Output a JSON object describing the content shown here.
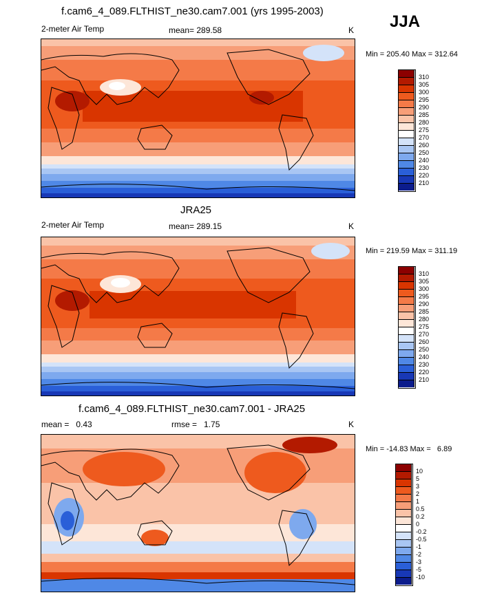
{
  "season": "JJA",
  "panels": [
    {
      "title": "f.cam6_4_089.FLTHIST_ne30.cam7.001 (yrs 1995-2003)",
      "left_label": "2-meter Air Temp",
      "center_label": "mean= 289.58",
      "right_label": "K",
      "minmax": "Min = 205.40 Max = 312.64",
      "colorbar_ticks": [
        "310",
        "305",
        "300",
        "295",
        "290",
        "285",
        "280",
        "275",
        "270",
        "260",
        "250",
        "240",
        "230",
        "220",
        "210"
      ],
      "colorbar_colors": [
        "#8c0000",
        "#b31a00",
        "#d93500",
        "#ee5a1e",
        "#f47a48",
        "#f79e78",
        "#fac3a8",
        "#fde6d8",
        "#ffffff",
        "#d4e3f9",
        "#a9c6f3",
        "#7ea9ee",
        "#4f88e6",
        "#2a5fd8",
        "#1838b6",
        "#0c1c8c"
      ]
    },
    {
      "title": "JRA25",
      "left_label": "2-meter Air Temp",
      "center_label": "mean= 289.15",
      "right_label": "K",
      "minmax": "Min = 219.59 Max = 311.19",
      "colorbar_ticks": [
        "310",
        "305",
        "300",
        "295",
        "290",
        "285",
        "280",
        "275",
        "270",
        "260",
        "250",
        "240",
        "230",
        "220",
        "210"
      ],
      "colorbar_colors": [
        "#8c0000",
        "#b31a00",
        "#d93500",
        "#ee5a1e",
        "#f47a48",
        "#f79e78",
        "#fac3a8",
        "#fde6d8",
        "#ffffff",
        "#d4e3f9",
        "#a9c6f3",
        "#7ea9ee",
        "#4f88e6",
        "#2a5fd8",
        "#1838b6",
        "#0c1c8c"
      ]
    },
    {
      "title": "f.cam6_4_089.FLTHIST_ne30.cam7.001 - JRA25",
      "left_label": "mean =   0.43",
      "center_label": "rmse =   1.75",
      "right_label": "K",
      "minmax": "Min = -14.83 Max =   6.89",
      "colorbar_ticks": [
        "10",
        "5",
        "3",
        "2",
        "1",
        "0.5",
        "0.2",
        "0",
        "-0.2",
        "-0.5",
        "-1",
        "-2",
        "-3",
        "-5",
        "-10"
      ],
      "colorbar_colors": [
        "#8c0000",
        "#b31a00",
        "#d93500",
        "#ee5a1e",
        "#f47a48",
        "#f79e78",
        "#fac3a8",
        "#fde6d8",
        "#ffffff",
        "#d4e3f9",
        "#a9c6f3",
        "#7ea9ee",
        "#4f88e6",
        "#2a5fd8",
        "#1838b6",
        "#0c1c8c"
      ]
    }
  ]
}
